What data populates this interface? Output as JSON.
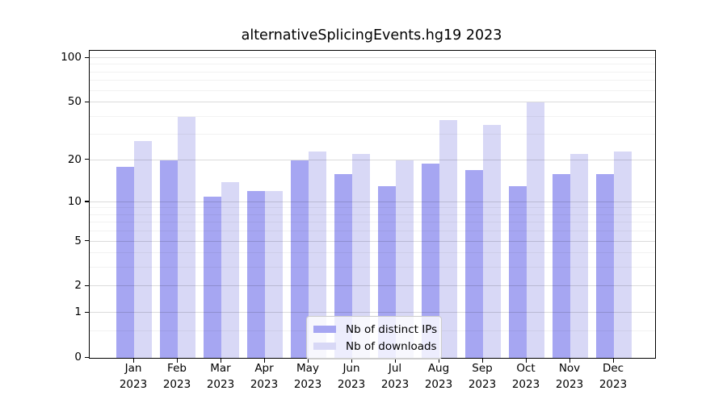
{
  "chart_data": {
    "type": "bar",
    "title": "alternativeSplicingEvents.hg19 2023",
    "categories": [
      "Jan",
      "Feb",
      "Mar",
      "Apr",
      "May",
      "Jun",
      "Jul",
      "Aug",
      "Sep",
      "Oct",
      "Nov",
      "Dec"
    ],
    "category_year": "2023",
    "series": [
      {
        "name": "Nb of distinct IPs",
        "color": "#a6a6f2",
        "values": [
          18,
          20,
          11,
          12,
          20,
          16,
          13,
          19,
          17,
          13,
          16,
          16
        ]
      },
      {
        "name": "Nb of downloads",
        "color": "#d8d8f6",
        "values": [
          27,
          40,
          14,
          12,
          23,
          22,
          20,
          38,
          35,
          50,
          22,
          23
        ]
      }
    ],
    "yscale": "log(1+x)",
    "ylim": [
      0,
      100
    ],
    "yticks": [
      0,
      1,
      2,
      5,
      10,
      20,
      50,
      100
    ],
    "yticks_minor": [
      0.5,
      3,
      4,
      6,
      7,
      8,
      9,
      30,
      40,
      60,
      70,
      80,
      90
    ],
    "grid": "on",
    "legend_position": "lower center"
  }
}
